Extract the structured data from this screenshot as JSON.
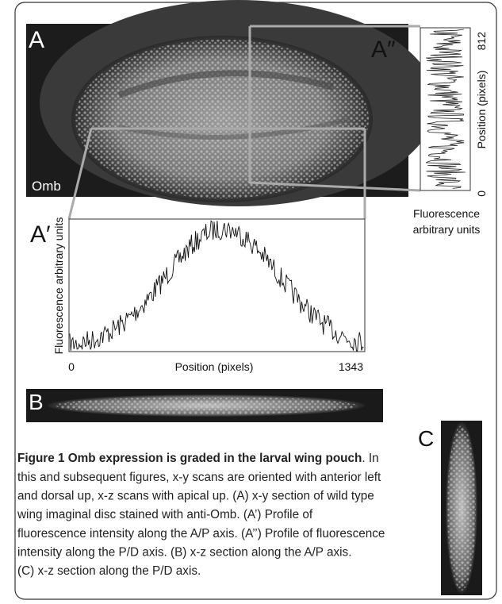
{
  "figure": {
    "panels": {
      "A": {
        "label": "A",
        "stain": "Omb"
      },
      "A_prime": {
        "label": "A′",
        "y_label": "Fluorescence arbitrary units",
        "x_label": "Position (pixels)",
        "x_start": "0",
        "x_end": "1343"
      },
      "A_double_prime": {
        "label": "A″",
        "y_label": "Position (pixels)",
        "y_top": "812",
        "y_bottom": "0",
        "x_label_lines": [
          "Fluorescence",
          "arbitrary units"
        ]
      },
      "B": {
        "label": "B"
      },
      "C": {
        "label": "C"
      }
    },
    "caption": {
      "title": "Figure 1 Omb expression is graded in the larval wing pouch",
      "title_tail": ". In",
      "lines": [
        "this and subsequent figures, x-y scans are oriented with anterior left",
        "and dorsal up, x-z scans with apical up. (A) x-y section of wild type",
        "wing imaginal disc stained with anti-Omb. (A’) Profile of",
        "fluorescence intensity along the A/P axis. (A’’) Profile of fluorescence",
        "intensity along the P/D axis. (B) x-z section along the A/P axis.",
        "(C) x-z section along the P/D axis."
      ]
    }
  }
}
